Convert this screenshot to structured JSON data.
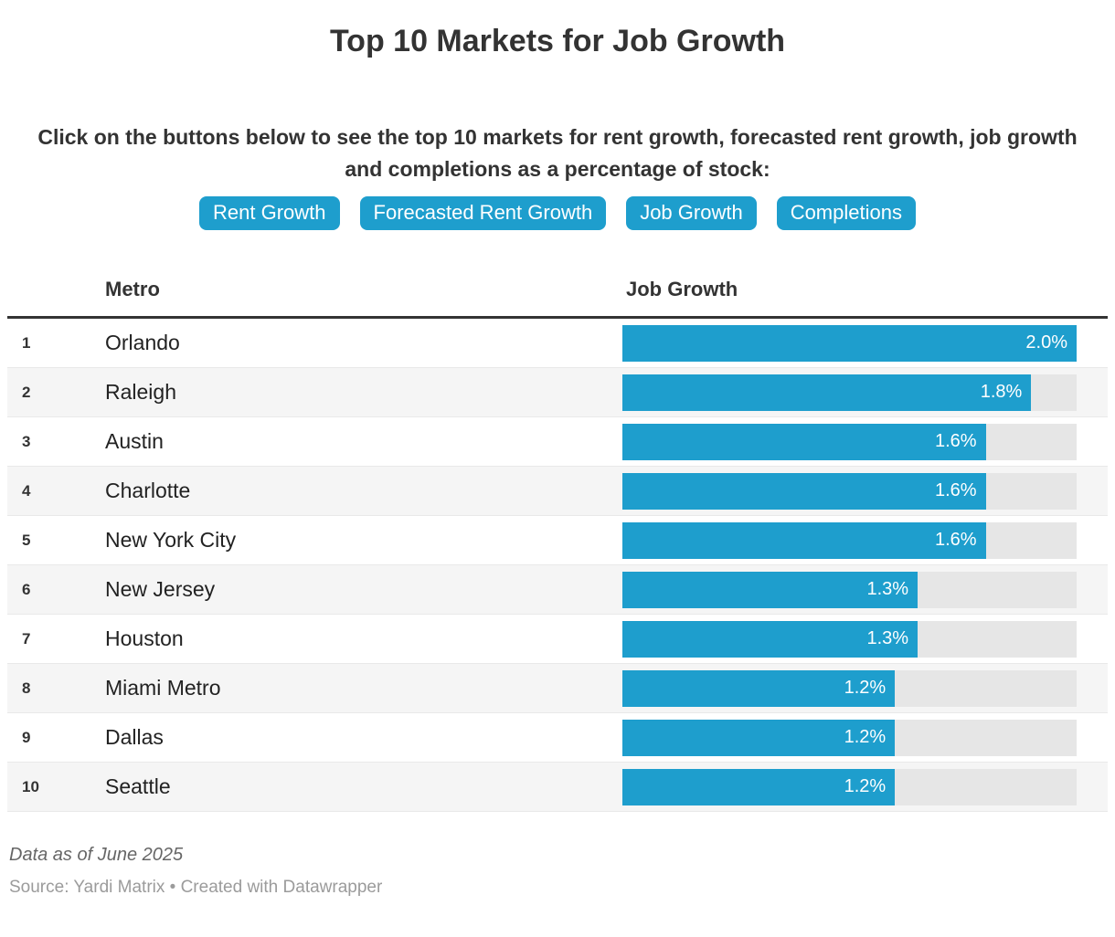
{
  "title": "Top 10 Markets for Job Growth",
  "description": "Click on the buttons below to see the top 10 markets for rent growth, forecasted rent growth, job growth and completions as a percentage of stock:",
  "buttons": [
    {
      "label": "Rent Growth"
    },
    {
      "label": "Forecasted Rent Growth"
    },
    {
      "label": "Job Growth"
    },
    {
      "label": "Completions"
    }
  ],
  "table": {
    "metro_header": "Metro",
    "value_header": "Job Growth"
  },
  "rows": [
    {
      "rank": "1",
      "metro": "Orlando",
      "value": 2.0,
      "label": "2.0%"
    },
    {
      "rank": "2",
      "metro": "Raleigh",
      "value": 1.8,
      "label": "1.8%"
    },
    {
      "rank": "3",
      "metro": "Austin",
      "value": 1.6,
      "label": "1.6%"
    },
    {
      "rank": "4",
      "metro": "Charlotte",
      "value": 1.6,
      "label": "1.6%"
    },
    {
      "rank": "5",
      "metro": "New York City",
      "value": 1.6,
      "label": "1.6%"
    },
    {
      "rank": "6",
      "metro": "New Jersey",
      "value": 1.3,
      "label": "1.3%"
    },
    {
      "rank": "7",
      "metro": "Houston",
      "value": 1.3,
      "label": "1.3%"
    },
    {
      "rank": "8",
      "metro": "Miami Metro",
      "value": 1.2,
      "label": "1.2%"
    },
    {
      "rank": "9",
      "metro": "Dallas",
      "value": 1.2,
      "label": "1.2%"
    },
    {
      "rank": "10",
      "metro": "Seattle",
      "value": 1.2,
      "label": "1.2%"
    }
  ],
  "chart_data": {
    "type": "bar",
    "orientation": "horizontal",
    "title": "Top 10 Markets for Job Growth",
    "categories": [
      "Orlando",
      "Raleigh",
      "Austin",
      "Charlotte",
      "New York City",
      "New Jersey",
      "Houston",
      "Miami Metro",
      "Dallas",
      "Seattle"
    ],
    "values": [
      2.0,
      1.8,
      1.6,
      1.6,
      1.6,
      1.3,
      1.3,
      1.2,
      1.2,
      1.2
    ],
    "value_labels": [
      "2.0%",
      "1.8%",
      "1.6%",
      "1.6%",
      "1.6%",
      "1.3%",
      "1.3%",
      "1.2%",
      "1.2%",
      "1.2%"
    ],
    "xlabel": "Job Growth",
    "ylabel": "Metro",
    "xlim": [
      0,
      2.0
    ],
    "grid": false,
    "legend": false
  },
  "footer": {
    "note": "Data as of June 2025",
    "source_prefix": "Source: ",
    "source_name": "Yardi Matrix",
    "source_separator": " • Created with ",
    "brand": "Datawrapper"
  },
  "colors": {
    "accent": "#1e9ecd",
    "bar_track": "#e6e6e6",
    "row_stripe": "#f5f5f5",
    "header_rule": "#333333",
    "text_dark": "#333333",
    "note_gray": "#666666",
    "source_gray": "#9b9b9b"
  }
}
